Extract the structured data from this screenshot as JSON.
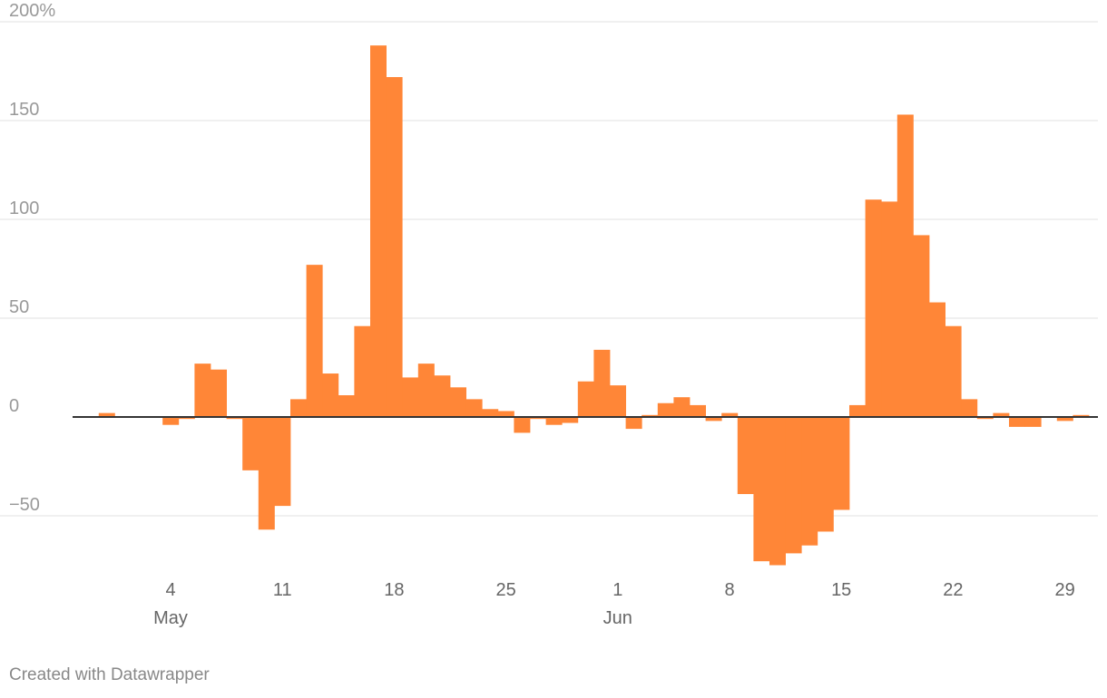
{
  "colors": {
    "bar": "#ff8637",
    "grid": "#e2e2e2",
    "zero_line": "#333333"
  },
  "credit": "Created with Datawrapper",
  "chart_data": {
    "type": "bar",
    "title": "",
    "xlabel": "",
    "ylabel": "",
    "ylim": [
      -75,
      200
    ],
    "y_ticks": [
      {
        "value": 200,
        "label": "200%"
      },
      {
        "value": 150,
        "label": "150"
      },
      {
        "value": 100,
        "label": "100"
      },
      {
        "value": 50,
        "label": "50"
      },
      {
        "value": 0,
        "label": "0"
      },
      {
        "value": -50,
        "label": "−50"
      }
    ],
    "x_ticks": [
      {
        "date": "2020-05-04",
        "label": "4",
        "sub": "May"
      },
      {
        "date": "2020-05-11",
        "label": "11"
      },
      {
        "date": "2020-05-18",
        "label": "18"
      },
      {
        "date": "2020-05-25",
        "label": "25"
      },
      {
        "date": "2020-06-01",
        "label": "1",
        "sub": "Jun"
      },
      {
        "date": "2020-06-08",
        "label": "8"
      },
      {
        "date": "2020-06-15",
        "label": "15"
      },
      {
        "date": "2020-06-22",
        "label": "22"
      },
      {
        "date": "2020-06-29",
        "label": "29"
      }
    ],
    "grid": true,
    "series": [
      {
        "values": [
          {
            "x": "2020-04-30",
            "y": 2
          },
          {
            "x": "2020-05-01",
            "y": 0
          },
          {
            "x": "2020-05-02",
            "y": 0
          },
          {
            "x": "2020-05-03",
            "y": 0
          },
          {
            "x": "2020-05-04",
            "y": -4
          },
          {
            "x": "2020-05-05",
            "y": -1
          },
          {
            "x": "2020-05-06",
            "y": 27
          },
          {
            "x": "2020-05-07",
            "y": 24
          },
          {
            "x": "2020-05-08",
            "y": -1
          },
          {
            "x": "2020-05-09",
            "y": -27
          },
          {
            "x": "2020-05-10",
            "y": -57
          },
          {
            "x": "2020-05-11",
            "y": -45
          },
          {
            "x": "2020-05-12",
            "y": 9
          },
          {
            "x": "2020-05-13",
            "y": 77
          },
          {
            "x": "2020-05-14",
            "y": 22
          },
          {
            "x": "2020-05-15",
            "y": 11
          },
          {
            "x": "2020-05-16",
            "y": 46
          },
          {
            "x": "2020-05-17",
            "y": 188
          },
          {
            "x": "2020-05-18",
            "y": 172
          },
          {
            "x": "2020-05-19",
            "y": 20
          },
          {
            "x": "2020-05-20",
            "y": 27
          },
          {
            "x": "2020-05-21",
            "y": 21
          },
          {
            "x": "2020-05-22",
            "y": 15
          },
          {
            "x": "2020-05-23",
            "y": 9
          },
          {
            "x": "2020-05-24",
            "y": 4
          },
          {
            "x": "2020-05-25",
            "y": 3
          },
          {
            "x": "2020-05-26",
            "y": -8
          },
          {
            "x": "2020-05-27",
            "y": -1
          },
          {
            "x": "2020-05-28",
            "y": -4
          },
          {
            "x": "2020-05-29",
            "y": -3
          },
          {
            "x": "2020-05-30",
            "y": 18
          },
          {
            "x": "2020-05-31",
            "y": 34
          },
          {
            "x": "2020-06-01",
            "y": 16
          },
          {
            "x": "2020-06-02",
            "y": -6
          },
          {
            "x": "2020-06-03",
            "y": 1
          },
          {
            "x": "2020-06-04",
            "y": 7
          },
          {
            "x": "2020-06-05",
            "y": 10
          },
          {
            "x": "2020-06-06",
            "y": 6
          },
          {
            "x": "2020-06-07",
            "y": -2
          },
          {
            "x": "2020-06-08",
            "y": 2
          },
          {
            "x": "2020-06-09",
            "y": -39
          },
          {
            "x": "2020-06-10",
            "y": -73
          },
          {
            "x": "2020-06-11",
            "y": -75
          },
          {
            "x": "2020-06-12",
            "y": -69
          },
          {
            "x": "2020-06-13",
            "y": -65
          },
          {
            "x": "2020-06-14",
            "y": -58
          },
          {
            "x": "2020-06-15",
            "y": -47
          },
          {
            "x": "2020-06-16",
            "y": 6
          },
          {
            "x": "2020-06-17",
            "y": 110
          },
          {
            "x": "2020-06-18",
            "y": 109
          },
          {
            "x": "2020-06-19",
            "y": 153
          },
          {
            "x": "2020-06-20",
            "y": 92
          },
          {
            "x": "2020-06-21",
            "y": 58
          },
          {
            "x": "2020-06-22",
            "y": 46
          },
          {
            "x": "2020-06-23",
            "y": 9
          },
          {
            "x": "2020-06-24",
            "y": -1
          },
          {
            "x": "2020-06-25",
            "y": 2
          },
          {
            "x": "2020-06-26",
            "y": -5
          },
          {
            "x": "2020-06-27",
            "y": -5
          },
          {
            "x": "2020-06-28",
            "y": 0
          },
          {
            "x": "2020-06-29",
            "y": -2
          },
          {
            "x": "2020-06-30",
            "y": 1
          }
        ]
      }
    ]
  }
}
